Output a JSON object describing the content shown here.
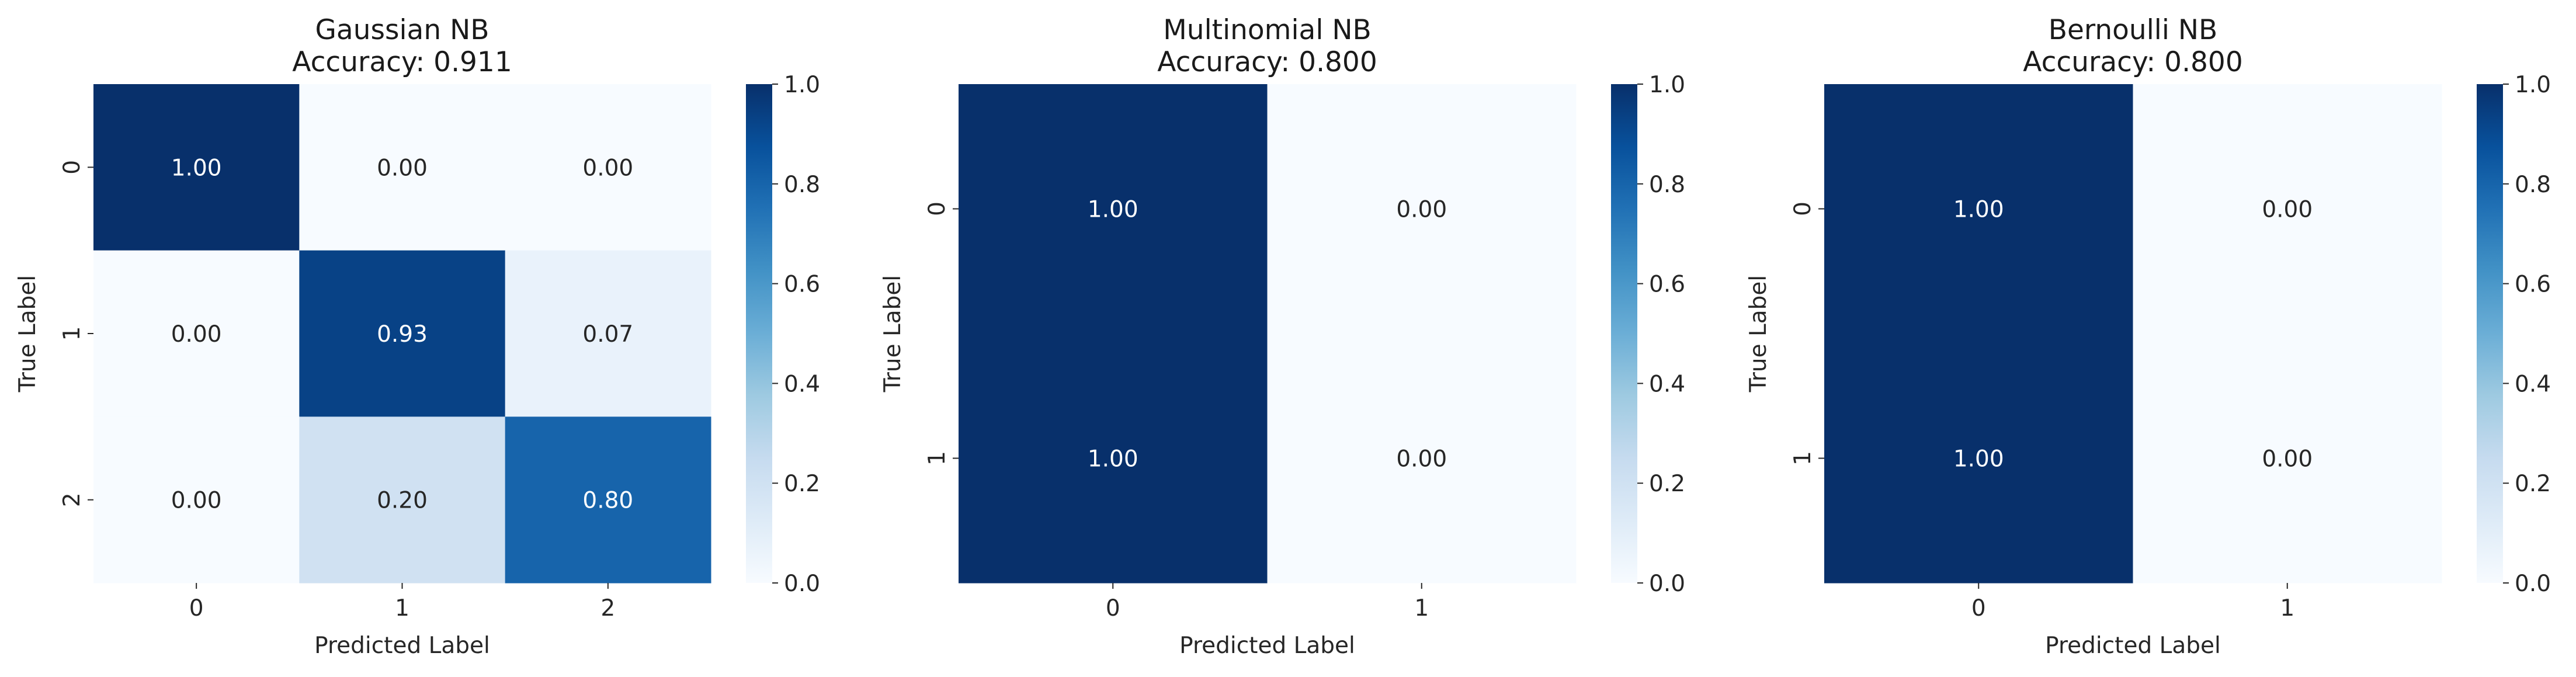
{
  "figure": {
    "background": "#ffffff",
    "colormap": "Blues"
  },
  "chart_data": [
    {
      "type": "heatmap",
      "title": "Gaussian NB",
      "subtitle": "Accuracy: 0.911",
      "xlabel": "Predicted Label",
      "ylabel": "True Label",
      "x_categories": [
        "0",
        "1",
        "2"
      ],
      "y_categories": [
        "0",
        "1",
        "2"
      ],
      "values": [
        [
          1.0,
          0.0,
          0.0
        ],
        [
          0.0,
          0.93,
          0.07
        ],
        [
          0.0,
          0.2,
          0.8
        ]
      ],
      "value_labels": [
        [
          "1.00",
          "0.00",
          "0.00"
        ],
        [
          "0.00",
          "0.93",
          "0.07"
        ],
        [
          "0.00",
          "0.20",
          "0.80"
        ]
      ],
      "colorbar": {
        "range": [
          0.0,
          1.0
        ],
        "ticks": [
          0.0,
          0.2,
          0.4,
          0.6,
          0.8,
          1.0
        ],
        "tick_labels": [
          "0.0",
          "0.2",
          "0.4",
          "0.6",
          "0.8",
          "1.0"
        ]
      }
    },
    {
      "type": "heatmap",
      "title": "Multinomial NB",
      "subtitle": "Accuracy: 0.800",
      "xlabel": "Predicted Label",
      "ylabel": "True Label",
      "x_categories": [
        "0",
        "1"
      ],
      "y_categories": [
        "0",
        "1"
      ],
      "values": [
        [
          1.0,
          0.0
        ],
        [
          1.0,
          0.0
        ]
      ],
      "value_labels": [
        [
          "1.00",
          "0.00"
        ],
        [
          "1.00",
          "0.00"
        ]
      ],
      "colorbar": {
        "range": [
          0.0,
          1.0
        ],
        "ticks": [
          0.0,
          0.2,
          0.4,
          0.6,
          0.8,
          1.0
        ],
        "tick_labels": [
          "0.0",
          "0.2",
          "0.4",
          "0.6",
          "0.8",
          "1.0"
        ]
      }
    },
    {
      "type": "heatmap",
      "title": "Bernoulli NB",
      "subtitle": "Accuracy: 0.800",
      "xlabel": "Predicted Label",
      "ylabel": "True Label",
      "x_categories": [
        "0",
        "1"
      ],
      "y_categories": [
        "0",
        "1"
      ],
      "values": [
        [
          1.0,
          0.0
        ],
        [
          1.0,
          0.0
        ]
      ],
      "value_labels": [
        [
          "1.00",
          "0.00"
        ],
        [
          "1.00",
          "0.00"
        ]
      ],
      "colorbar": {
        "range": [
          0.0,
          1.0
        ],
        "ticks": [
          0.0,
          0.2,
          0.4,
          0.6,
          0.8,
          1.0
        ],
        "tick_labels": [
          "0.0",
          "0.2",
          "0.4",
          "0.6",
          "0.8",
          "1.0"
        ]
      }
    }
  ]
}
